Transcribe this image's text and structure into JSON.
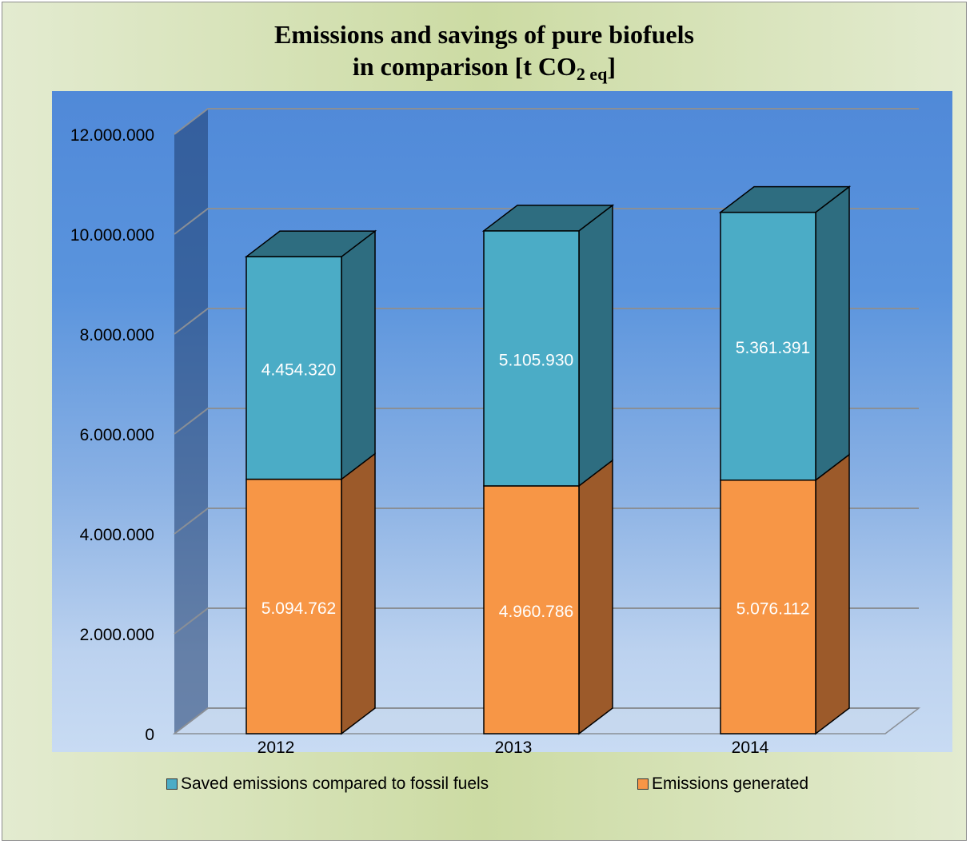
{
  "title_line1": "Emissions and savings of pure biofuels",
  "title_line2_pre": "in comparison [t CO",
  "title_sub": "2 eq",
  "title_line2_post": "]",
  "chart_data": {
    "type": "bar",
    "stacked": true,
    "three_d": true,
    "categories": [
      "2012",
      "2013",
      "2014"
    ],
    "series": [
      {
        "name": "Emissions generated",
        "values": [
          5094762,
          4960786,
          5076112
        ],
        "labels": [
          "5.094.762",
          "4.960.786",
          "5.076.112"
        ],
        "color": "#f79646",
        "side_color": "#9c5a2a"
      },
      {
        "name": "Saved emissions compared to fossil fuels",
        "values": [
          4454320,
          5105930,
          5361391
        ],
        "labels": [
          "4.454.320",
          "5.105.930",
          "5.361.391"
        ],
        "color": "#4bacc6",
        "side_color": "#2e6d80"
      }
    ],
    "yticks": [
      "0",
      "2.000.000",
      "4.000.000",
      "6.000.000",
      "8.000.000",
      "10.000.000",
      "12.000.000"
    ],
    "ylim": [
      0,
      12000000
    ],
    "grid": true,
    "legend_position": "bottom"
  },
  "legend": [
    {
      "label": "Saved emissions compared to fossil fuels",
      "color": "#4bacc6"
    },
    {
      "label": "Emissions generated",
      "color": "#f79646"
    }
  ]
}
